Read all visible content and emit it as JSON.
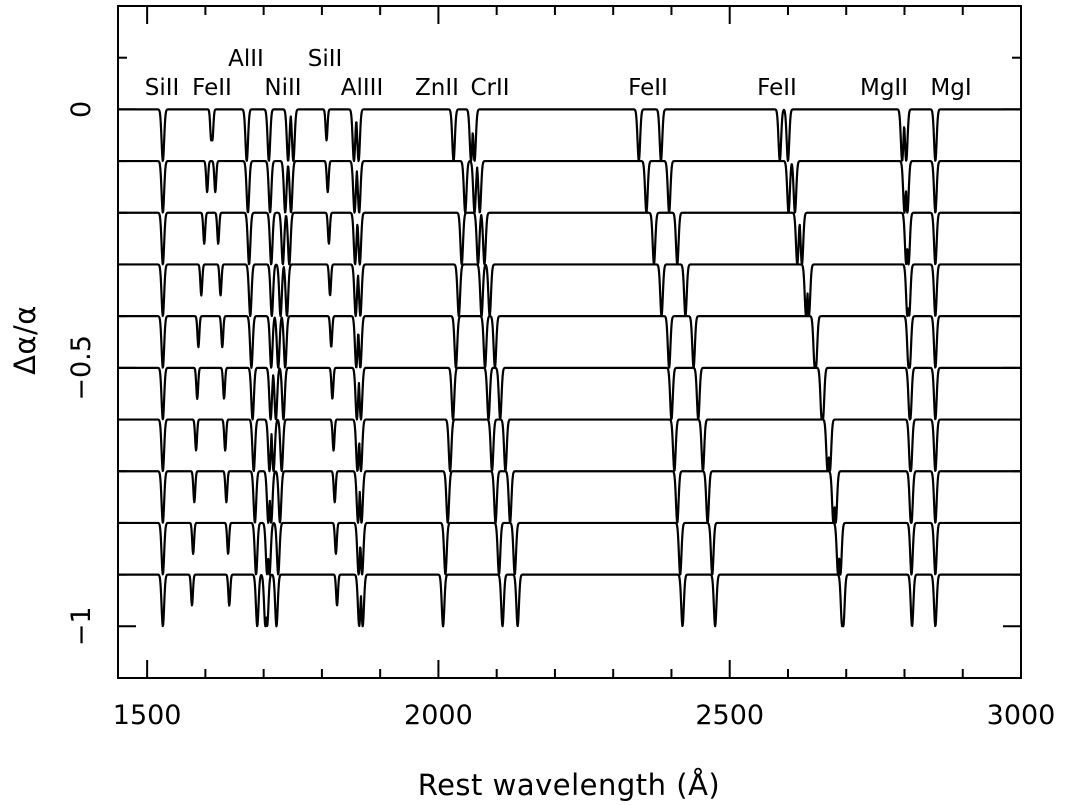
{
  "chart_data": {
    "type": "line",
    "xlabel": "Rest wavelength (Å)",
    "ylabel": "Δα/α",
    "xlim": [
      1450,
      3000
    ],
    "ylim": [
      -1.1,
      0.2
    ],
    "x_ticks": [
      1500,
      2000,
      2500,
      3000
    ],
    "x_tick_labels": [
      "1500",
      "2000",
      "2500",
      "3000"
    ],
    "y_ticks": [
      0,
      -0.5,
      -1
    ],
    "y_tick_labels": [
      "0",
      "−0.5",
      "−1"
    ],
    "grid": false,
    "legend": "none",
    "spectra_offsets": [
      0,
      -0.1,
      -0.2,
      -0.3,
      -0.4,
      -0.5,
      -0.6,
      -0.7,
      -0.8,
      -0.9
    ],
    "line_depths": {
      "strong": 0.1,
      "weak": 0.06
    },
    "absorption_lines": [
      {
        "ion": "SiII",
        "x": [
          1527,
          1527,
          1527,
          1527,
          1527,
          1527,
          1527,
          1527,
          1527,
          1527
        ],
        "strength": "strong"
      },
      {
        "ion": "FeII",
        "x": [
          1610,
          1603,
          1598,
          1593,
          1588,
          1586,
          1584,
          1581,
          1579,
          1577
        ],
        "strength": "weak"
      },
      {
        "ion": "FeII",
        "x": [
          1612,
          1617,
          1622,
          1626,
          1629,
          1632,
          1634,
          1636,
          1639,
          1641
        ],
        "strength": "weak"
      },
      {
        "ion": "AlII",
        "x": [
          1671,
          1673,
          1675,
          1677,
          1679,
          1681,
          1683,
          1685,
          1687,
          1689
        ],
        "strength": "strong"
      },
      {
        "ion": "NiII",
        "x": [
          1709,
          1711,
          1713,
          1714,
          1713,
          1712,
          1710,
          1708,
          1706,
          1703
        ],
        "strength": "strong"
      },
      {
        "ion": "NiII",
        "x": [
          1742,
          1737,
          1733,
          1729,
          1725,
          1721,
          1717,
          1713,
          1710,
          1706
        ],
        "strength": "strong"
      },
      {
        "ion": "NiII",
        "x": [
          1751,
          1747,
          1744,
          1740,
          1737,
          1734,
          1731,
          1728,
          1725,
          1722
        ],
        "strength": "strong"
      },
      {
        "ion": "SiII",
        "x": [
          1808,
          1810,
          1812,
          1814,
          1816,
          1818,
          1820,
          1822,
          1824,
          1826
        ],
        "strength": "weak"
      },
      {
        "ion": "AlIII",
        "x": [
          1855,
          1856,
          1857,
          1858,
          1859,
          1860,
          1861,
          1862,
          1863,
          1864
        ],
        "strength": "strong"
      },
      {
        "ion": "AlIII",
        "x": [
          1863,
          1864,
          1865,
          1866,
          1866,
          1867,
          1867,
          1868,
          1869,
          1870
        ],
        "strength": "strong"
      },
      {
        "ion": "ZnII",
        "x": [
          2026,
          2046,
          2040,
          2035,
          2030,
          2025,
          2020,
          2016,
          2012,
          2008
        ],
        "strength": "strong"
      },
      {
        "ion": "CrII",
        "x": [
          2056,
          2062,
          2068,
          2074,
          2080,
          2086,
          2092,
          2098,
          2104,
          2110
        ],
        "strength": "strong"
      },
      {
        "ion": "CrII",
        "x": [
          2062,
          2071,
          2079,
          2088,
          2097,
          2106,
          2115,
          2123,
          2131,
          2136
        ],
        "strength": "strong"
      },
      {
        "ion": "FeII",
        "x": [
          2344,
          2357,
          2370,
          2383,
          2396,
          2400,
          2405,
          2410,
          2415,
          2419
        ],
        "strength": "strong"
      },
      {
        "ion": "FeII",
        "x": [
          2382,
          2396,
          2410,
          2424,
          2438,
          2446,
          2454,
          2462,
          2470,
          2475
        ],
        "strength": "strong"
      },
      {
        "ion": "FeII",
        "x": [
          2586,
          2601,
          2616,
          2631,
          2646,
          2658,
          2668,
          2678,
          2686,
          2693
        ],
        "strength": "strong"
      },
      {
        "ion": "FeII",
        "x": [
          2600,
          2612,
          2624,
          2636,
          2648,
          2660,
          2672,
          2682,
          2690,
          2695
        ],
        "strength": "strong"
      },
      {
        "ion": "MgII",
        "x": [
          2796,
          2800,
          2803,
          2805,
          2807,
          2809,
          2810,
          2811,
          2812,
          2813
        ],
        "strength": "strong"
      },
      {
        "ion": "MgII",
        "x": [
          2803,
          2805,
          2807,
          2808,
          2809,
          2810,
          2811,
          2812,
          2812,
          2813
        ],
        "strength": "strong"
      },
      {
        "ion": "MgI",
        "x": [
          2853,
          2853,
          2853,
          2853,
          2853,
          2853,
          2853,
          2853,
          2853,
          2853
        ],
        "strength": "strong"
      }
    ],
    "annotations": [
      "SiII",
      "FeII",
      "AlII",
      "NiII",
      "SiII",
      "AlIII",
      "ZnII",
      "CrII",
      "FeII",
      "FeII",
      "MgII",
      "MgI"
    ]
  }
}
